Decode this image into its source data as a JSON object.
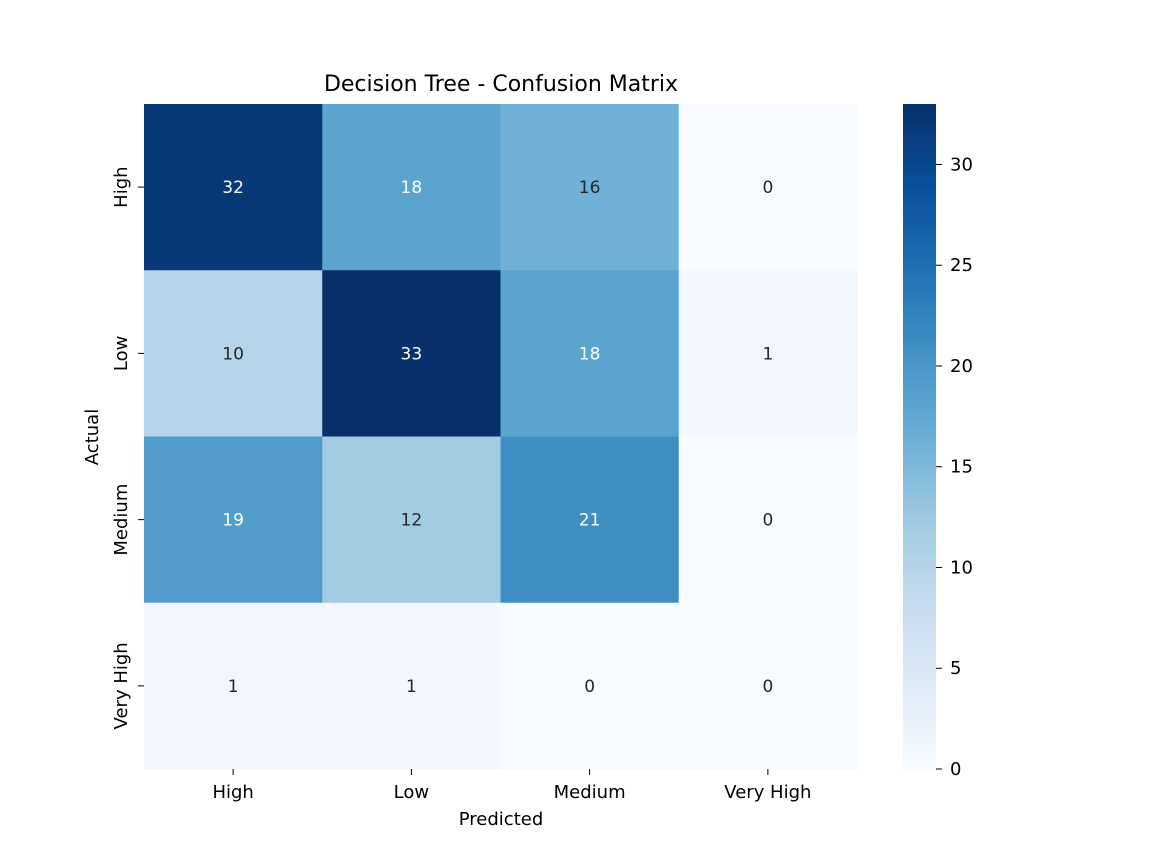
{
  "chart_data": {
    "type": "heatmap",
    "title": "Decision Tree - Confusion Matrix",
    "xlabel": "Predicted",
    "ylabel": "Actual",
    "x_categories": [
      "High",
      "Low",
      "Medium",
      "Very High"
    ],
    "y_categories": [
      "High",
      "Low",
      "Medium",
      "Very High"
    ],
    "values": [
      [
        32,
        18,
        16,
        0
      ],
      [
        10,
        33,
        18,
        1
      ],
      [
        19,
        12,
        21,
        0
      ],
      [
        1,
        1,
        0,
        0
      ]
    ],
    "colormap": "Blues",
    "color_range": [
      0,
      33
    ],
    "colorbar_ticks": [
      0,
      5,
      10,
      15,
      20,
      25,
      30
    ],
    "grid": false,
    "annotated": true
  }
}
